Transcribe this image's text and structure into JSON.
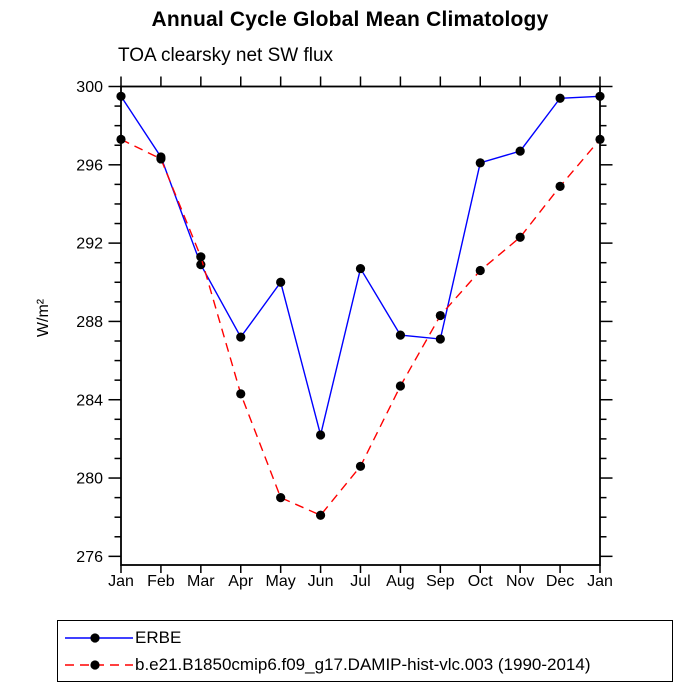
{
  "chart_data": {
    "type": "line",
    "title": "Annual Cycle Global Mean Climatology",
    "subtitle": "TOA clearsky net SW flux",
    "ylabel": "W/m²",
    "xlabel": "",
    "ylim": [
      276,
      300
    ],
    "ytick_major_step": 4,
    "ytick_minor_step": 1,
    "grid": false,
    "legend_position": "bottom-left",
    "categories": [
      "Jan",
      "Feb",
      "Mar",
      "Apr",
      "May",
      "Jun",
      "Jul",
      "Aug",
      "Sep",
      "Oct",
      "Nov",
      "Dec",
      "Jan"
    ],
    "series": [
      {
        "name": "ERBE",
        "color": "#0000ff",
        "line_style": "solid",
        "marker": "circle",
        "marker_color": "#000000",
        "values": [
          299.5,
          296.4,
          290.9,
          287.2,
          290.0,
          282.2,
          290.7,
          287.3,
          287.1,
          296.1,
          296.7,
          299.4,
          299.5
        ]
      },
      {
        "name": "b.e21.B1850cmip6.f09_g17.DAMIP-hist-vlc.003 (1990-2014)",
        "color": "#ff0000",
        "line_style": "dashed",
        "marker": "circle",
        "marker_color": "#000000",
        "values": [
          297.3,
          296.3,
          291.3,
          284.3,
          279.0,
          278.1,
          280.6,
          284.7,
          288.3,
          290.6,
          292.3,
          294.9,
          297.3
        ]
      }
    ]
  }
}
